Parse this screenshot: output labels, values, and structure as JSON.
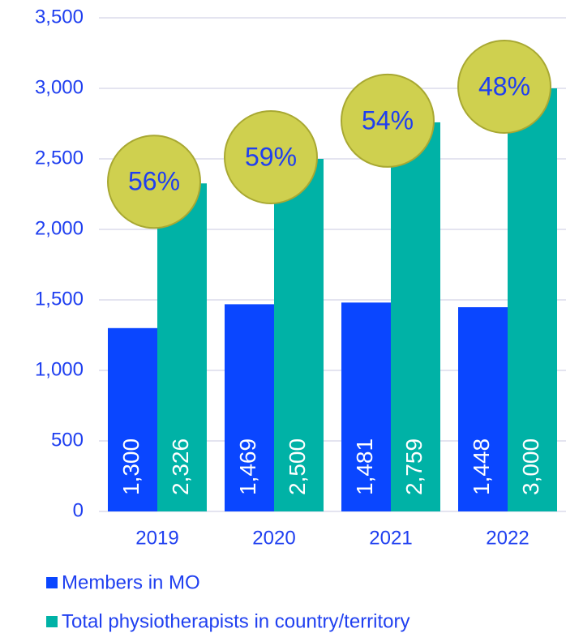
{
  "chart_data": {
    "type": "bar",
    "categories": [
      "2019",
      "2020",
      "2021",
      "2022"
    ],
    "series": [
      {
        "name": "Members in MO",
        "color": "#0a46ff",
        "values": [
          1300,
          1469,
          1481,
          1448
        ],
        "value_labels": [
          "1,300",
          "1,469",
          "1,481",
          "1,448"
        ]
      },
      {
        "name": "Total physiotherapists in country/territory",
        "color": "#00b2a6",
        "values": [
          2326,
          2500,
          2759,
          3000
        ],
        "value_labels": [
          "2,326",
          "2,500",
          "2,759",
          "3,000"
        ]
      }
    ],
    "annotations": [
      "56%",
      "59%",
      "54%",
      "48%"
    ],
    "annotation_color": "#cfd04f",
    "ylim": [
      0,
      3500
    ],
    "yticks": [
      0,
      500,
      {
        "value": 1000,
        "label": "1,000"
      },
      {
        "value": 1500,
        "label": "1,500"
      },
      {
        "value": 2000,
        "label": "2,000"
      },
      {
        "value": 2500,
        "label": "2,500"
      },
      {
        "value": 3000,
        "label": "3,000"
      },
      {
        "value": 3500,
        "label": "3,500"
      }
    ],
    "grid": true,
    "legend": "bottom"
  }
}
